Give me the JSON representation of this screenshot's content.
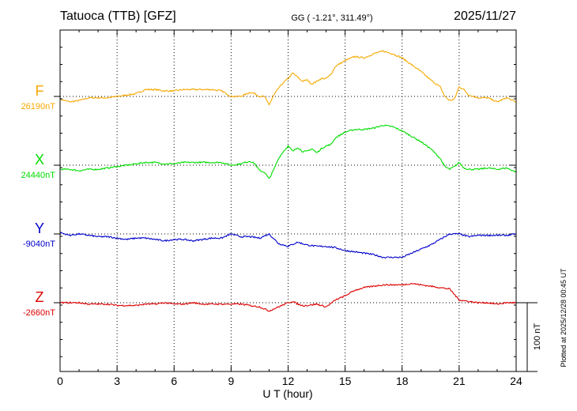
{
  "header": {
    "station": "Tatuoca (TTB)  [GFZ]",
    "coords": "GG ( -1.21°, 311.49°)",
    "date": "2025/11/27"
  },
  "footer": {
    "plotted": "Plotted at 2025/12/28 00:45 UT"
  },
  "chart_data": {
    "type": "line",
    "xlabel": "U T (hour)",
    "xlim": [
      0,
      24
    ],
    "xticks": [
      0,
      3,
      6,
      9,
      12,
      15,
      18,
      21,
      24
    ],
    "x_tick_labels": [
      "0",
      "3",
      "6",
      "9",
      "12",
      "15",
      "18",
      "21",
      "24"
    ],
    "scale_bar": {
      "value": 100,
      "label": "100 nT"
    },
    "grid": true,
    "series": [
      {
        "name": "F",
        "baseline": "26190nT",
        "color": "#f5a800",
        "x": [
          0,
          0.5,
          1,
          1.5,
          2,
          2.5,
          3,
          3.5,
          4,
          4.5,
          5,
          5.5,
          6,
          6.5,
          7,
          7.5,
          8,
          8.5,
          9,
          9.5,
          10,
          10.25,
          10.5,
          10.75,
          11,
          11.25,
          11.5,
          11.75,
          12,
          12.25,
          12.5,
          12.75,
          13,
          13.25,
          13.5,
          13.75,
          14,
          14.25,
          14.5,
          15,
          15.5,
          16,
          16.5,
          17,
          17.5,
          18,
          18.5,
          19,
          19.5,
          20,
          20.25,
          20.5,
          20.75,
          21,
          21.25,
          21.5,
          22,
          22.5,
          23,
          23.5,
          24
        ],
        "values": [
          -4,
          -8,
          -6,
          -2,
          -2,
          -2,
          0,
          2,
          4,
          10,
          10,
          8,
          8,
          10,
          10,
          10,
          10,
          8,
          0,
          0,
          6,
          4,
          0,
          0,
          -12,
          2,
          12,
          20,
          26,
          34,
          28,
          22,
          24,
          18,
          22,
          26,
          26,
          32,
          44,
          52,
          58,
          56,
          62,
          66,
          62,
          56,
          46,
          36,
          24,
          14,
          0,
          -6,
          -4,
          14,
          10,
          2,
          -2,
          -2,
          -8,
          -2,
          -8
        ]
      },
      {
        "name": "X",
        "baseline": "24440nT",
        "color": "#00dd00",
        "x": [
          0,
          0.5,
          1,
          1.5,
          2,
          2.5,
          3,
          3.5,
          4,
          4.5,
          5,
          5.5,
          6,
          6.5,
          7,
          7.5,
          8,
          8.5,
          9,
          9.5,
          10,
          10.25,
          10.5,
          10.75,
          11,
          11.25,
          11.5,
          11.75,
          12,
          12.25,
          12.5,
          12.75,
          13,
          13.25,
          13.5,
          13.75,
          14,
          14.25,
          14.5,
          15,
          15.5,
          16,
          16.5,
          17,
          17.5,
          18,
          18.5,
          19,
          19.5,
          20,
          20.25,
          20.5,
          20.75,
          21,
          21.25,
          21.5,
          22,
          22.5,
          23,
          23.5,
          24
        ],
        "values": [
          -6,
          -6,
          -8,
          -6,
          -6,
          -4,
          -2,
          0,
          2,
          4,
          4,
          2,
          2,
          4,
          4,
          4,
          4,
          4,
          0,
          2,
          6,
          2,
          -8,
          -10,
          -20,
          -6,
          10,
          20,
          28,
          20,
          26,
          20,
          20,
          24,
          18,
          24,
          28,
          30,
          40,
          48,
          52,
          52,
          54,
          58,
          56,
          50,
          42,
          34,
          24,
          10,
          -2,
          -6,
          -2,
          4,
          -4,
          -6,
          -6,
          -4,
          -6,
          -4,
          -10
        ]
      },
      {
        "name": "Y",
        "baseline": "-9040nT",
        "color": "#0000cc",
        "x": [
          0,
          0.5,
          1,
          1.5,
          2,
          2.5,
          3,
          3.5,
          4,
          4.5,
          5,
          5.5,
          6,
          6.5,
          7,
          7.5,
          8,
          8.5,
          9,
          9.5,
          10,
          10.5,
          11,
          11.5,
          12,
          12.5,
          13,
          13.5,
          14,
          14.5,
          15,
          15.5,
          16,
          16.5,
          17,
          17.5,
          18,
          18.5,
          19,
          19.5,
          20,
          20.5,
          21,
          21.5,
          22,
          22.5,
          23,
          23.5,
          24
        ],
        "values": [
          2,
          -2,
          0,
          -2,
          -4,
          -4,
          -6,
          -8,
          -6,
          -6,
          -8,
          -10,
          -8,
          -8,
          -10,
          -8,
          -6,
          -6,
          0,
          -4,
          -4,
          -6,
          0,
          -14,
          -18,
          -12,
          -16,
          -18,
          -18,
          -20,
          -24,
          -26,
          -28,
          -30,
          -34,
          -34,
          -34,
          -28,
          -22,
          -16,
          -8,
          0,
          0,
          -4,
          -2,
          -2,
          -2,
          -2,
          0
        ]
      },
      {
        "name": "Z",
        "baseline": "-2660nT",
        "color": "#dd0000",
        "x": [
          0,
          0.5,
          1,
          1.5,
          2,
          2.5,
          3,
          3.5,
          4,
          4.5,
          5,
          5.5,
          6,
          6.5,
          7,
          7.5,
          8,
          8.5,
          9,
          9.5,
          10,
          10.5,
          11,
          11.5,
          12,
          12.25,
          12.5,
          12.75,
          13,
          13.5,
          14,
          14.5,
          15,
          15.5,
          16,
          16.5,
          17,
          17.5,
          18,
          18.5,
          19,
          19.5,
          20,
          20.5,
          21,
          21.5,
          22,
          22.5,
          23,
          23.5,
          24
        ],
        "values": [
          0,
          0,
          0,
          -2,
          -2,
          -2,
          -4,
          -4,
          -4,
          -2,
          -2,
          0,
          -2,
          -2,
          0,
          -2,
          -2,
          -2,
          -2,
          -2,
          -4,
          -6,
          -12,
          -6,
          0,
          2,
          -2,
          -4,
          -4,
          -2,
          -6,
          4,
          10,
          18,
          22,
          24,
          26,
          26,
          26,
          28,
          26,
          24,
          22,
          20,
          4,
          2,
          0,
          0,
          -2,
          0,
          0
        ]
      }
    ]
  }
}
